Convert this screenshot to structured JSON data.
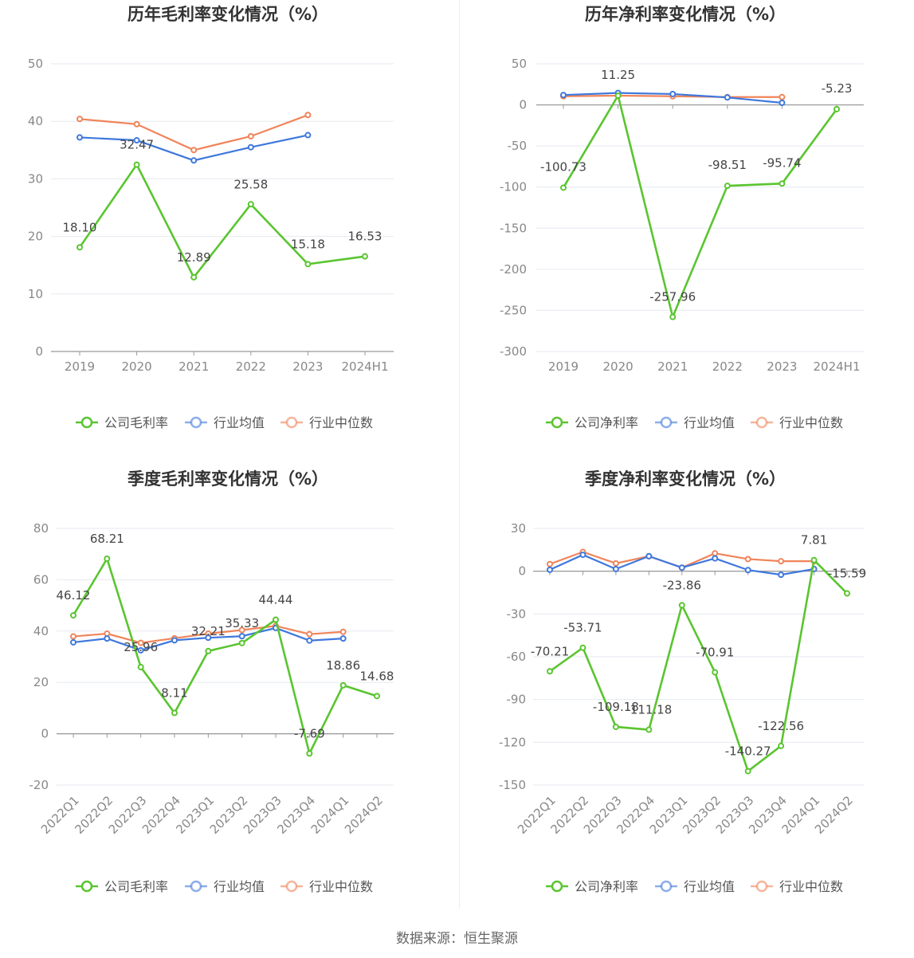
{
  "source_label": "数据来源：恒生聚源",
  "colors": {
    "company": "#5ac530",
    "industry_avg": "#3f78dc",
    "industry_median": "#f0845a"
  },
  "chart_data": [
    {
      "type": "line",
      "title": "历年毛利率变化情况（%）",
      "categories": [
        "2019",
        "2020",
        "2021",
        "2022",
        "2023",
        "2024H1"
      ],
      "ylim": [
        0,
        50
      ],
      "yticks": [
        0,
        10,
        20,
        30,
        40,
        50
      ],
      "series": [
        {
          "name": "公司毛利率",
          "values": [
            18.1,
            32.47,
            12.89,
            25.58,
            15.18,
            16.53
          ],
          "labels": [
            "18.10",
            "32.47",
            "12.89",
            "25.58",
            "15.18",
            "16.53"
          ]
        },
        {
          "name": "行业均值",
          "values": [
            37.2,
            36.7,
            33.2,
            35.5,
            37.6,
            null
          ]
        },
        {
          "name": "行业中位数",
          "values": [
            40.4,
            39.5,
            35.0,
            37.4,
            41.1,
            null
          ]
        }
      ]
    },
    {
      "type": "line",
      "title": "历年净利率变化情况（%）",
      "categories": [
        "2019",
        "2020",
        "2021",
        "2022",
        "2023",
        "2024H1"
      ],
      "ylim": [
        -300,
        50
      ],
      "yticks": [
        -300,
        -250,
        -200,
        -150,
        -100,
        -50,
        0,
        50
      ],
      "series": [
        {
          "name": "公司净利率",
          "values": [
            -100.73,
            11.25,
            -257.96,
            -98.51,
            -95.74,
            -5.23
          ],
          "labels": [
            "-100.73",
            "11.25",
            "-257.96",
            "-98.51",
            "-95.74",
            "-5.23"
          ]
        },
        {
          "name": "行业均值",
          "values": [
            12.0,
            14.5,
            13.2,
            9.0,
            2.5,
            null
          ]
        },
        {
          "name": "行业中位数",
          "values": [
            10.5,
            11.2,
            10.5,
            9.5,
            9.5,
            null
          ]
        }
      ]
    },
    {
      "type": "line",
      "title": "季度毛利率变化情况（%）",
      "categories": [
        "2022Q1",
        "2022Q2",
        "2022Q3",
        "2022Q4",
        "2023Q1",
        "2023Q2",
        "2023Q3",
        "2023Q4",
        "2024Q1",
        "2024Q2"
      ],
      "ylim": [
        -20,
        80
      ],
      "yticks": [
        -20,
        0,
        20,
        40,
        60,
        80
      ],
      "series": [
        {
          "name": "公司毛利率",
          "values": [
            46.12,
            68.21,
            25.96,
            8.11,
            32.21,
            35.33,
            44.44,
            -7.69,
            18.86,
            14.68
          ],
          "labels": [
            "46.12",
            "68.21",
            "25.96",
            "8.11",
            "32.21",
            "35.33",
            "44.44",
            "-7.69",
            "18.86",
            "14.68"
          ]
        },
        {
          "name": "行业均值",
          "values": [
            35.6,
            37.1,
            32.5,
            36.4,
            37.4,
            38.0,
            41.2,
            36.3,
            37.1,
            null
          ]
        },
        {
          "name": "行业中位数",
          "values": [
            37.9,
            39.0,
            35.4,
            37.2,
            39.0,
            40.4,
            42.0,
            38.8,
            39.7,
            null
          ]
        }
      ]
    },
    {
      "type": "line",
      "title": "季度净利率变化情况（%）",
      "categories": [
        "2022Q1",
        "2022Q2",
        "2022Q3",
        "2022Q4",
        "2023Q1",
        "2023Q2",
        "2023Q3",
        "2023Q4",
        "2024Q1",
        "2024Q2"
      ],
      "ylim": [
        -150,
        30
      ],
      "yticks": [
        -150,
        -120,
        -90,
        -60,
        -30,
        0,
        30
      ],
      "series": [
        {
          "name": "公司净利率",
          "values": [
            -70.21,
            -53.71,
            -109.18,
            -111.18,
            -23.86,
            -70.91,
            -140.27,
            -122.56,
            7.81,
            -15.59
          ],
          "labels": [
            "-70.21",
            "-53.71",
            "-109.18",
            "-111.18",
            "-23.86",
            "-70.91",
            "-140.27",
            "-122.56",
            "7.81",
            "-15.59"
          ]
        },
        {
          "name": "行业均值",
          "values": [
            1.0,
            11.5,
            1.5,
            10.5,
            2.5,
            9.0,
            0.8,
            -2.5,
            1.5,
            null
          ]
        },
        {
          "name": "行业中位数",
          "values": [
            5.0,
            13.5,
            5.5,
            10.5,
            2.5,
            12.5,
            8.5,
            7.0,
            7.0,
            null
          ]
        }
      ]
    }
  ]
}
